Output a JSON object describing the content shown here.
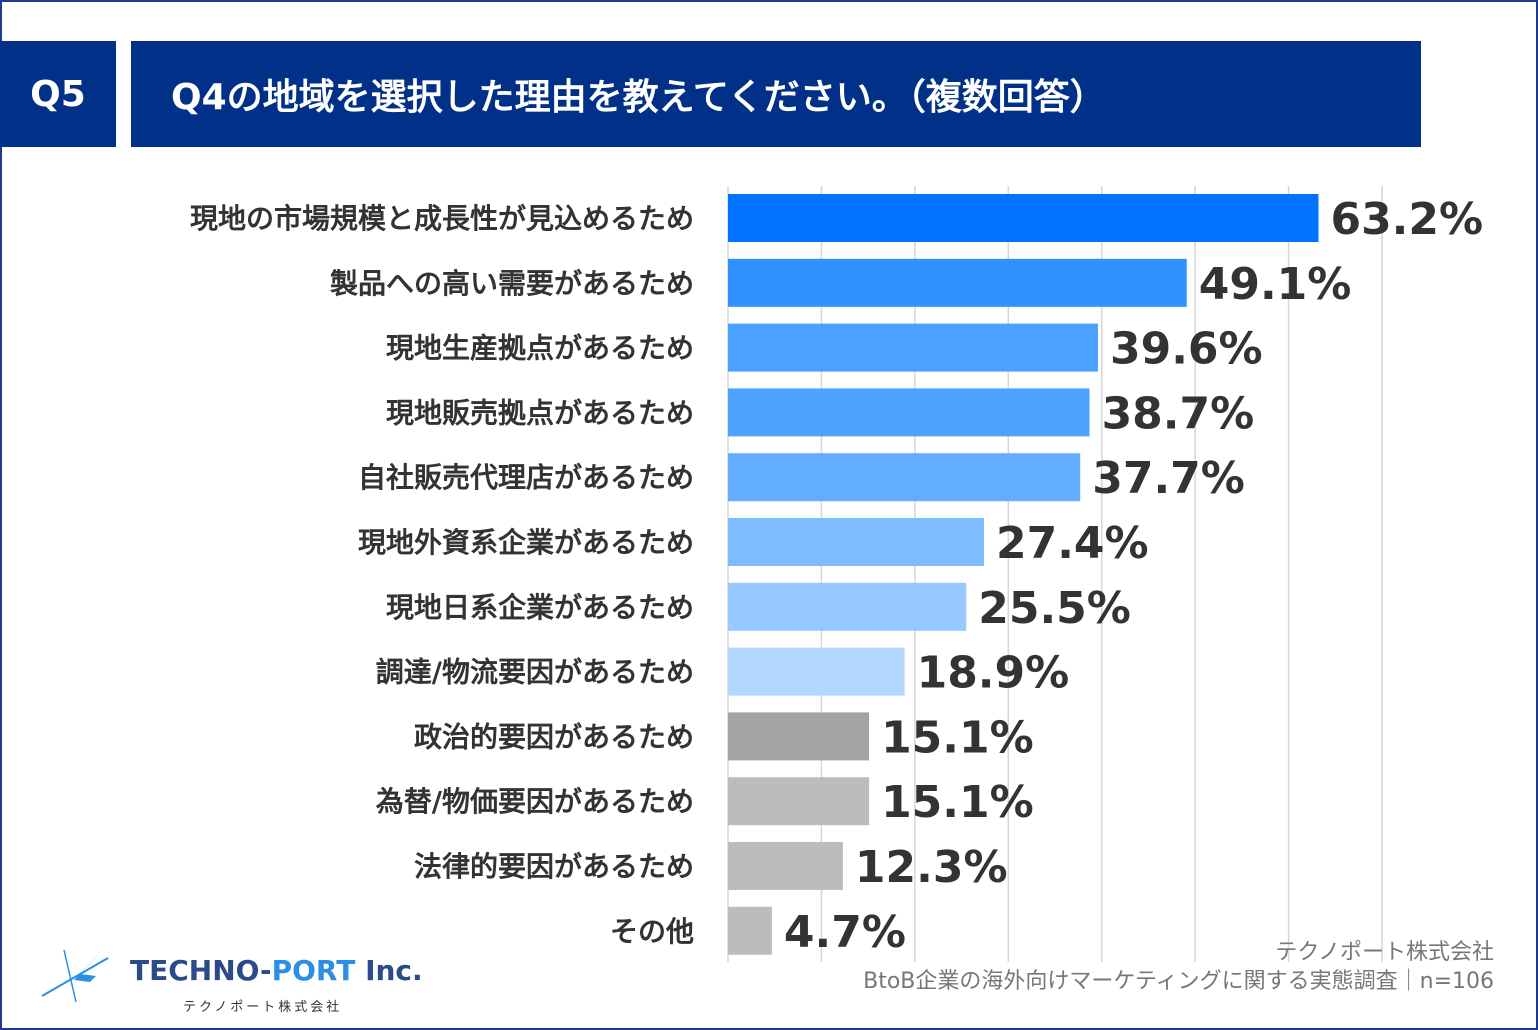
{
  "header": {
    "badge": "Q5",
    "question": "Q4の地域を選択した理由を教えてください。（複数回答）"
  },
  "chart_data": {
    "type": "bar",
    "orientation": "horizontal",
    "categories": [
      "現地の市場規模と成長性が見込めるため",
      "製品への高い需要があるため",
      "現地生産拠点があるため",
      "現地販売拠点があるため",
      "自社販売代理店があるため",
      "現地外資系企業があるため",
      "現地日系企業があるため",
      "調達/物流要因があるため",
      "政治的要因があるため",
      "為替/物価要因があるため",
      "法律的要因があるため",
      "その他"
    ],
    "values": [
      63.2,
      49.1,
      39.6,
      38.7,
      37.7,
      27.4,
      25.5,
      18.9,
      15.1,
      15.1,
      12.3,
      4.7
    ],
    "value_labels": [
      "63.2%",
      "49.1%",
      "39.6%",
      "38.7%",
      "37.7%",
      "27.4%",
      "25.5%",
      "18.9%",
      "15.1%",
      "15.1%",
      "12.3%",
      "4.7%"
    ],
    "colors": [
      "#0073ff",
      "#3191ff",
      "#4aa1ff",
      "#4ea3ff",
      "#62adff",
      "#7ebcff",
      "#97c8ff",
      "#b3d8ff",
      "#a4a4a4",
      "#bcbcbc",
      "#bcbcbc",
      "#bcbcbc"
    ],
    "xlim": [
      0,
      70
    ],
    "grid": true,
    "title": "Q4の地域を選択した理由を教えてください。（複数回答）",
    "xlabel": "",
    "ylabel": ""
  },
  "footer": {
    "company": "テクノポート株式会社",
    "survey": "BtoB企業の海外向けマーケティングに関する実態調査｜n=106"
  },
  "logo": {
    "name_main": "TECHNO-",
    "name_accent": "PORT",
    "name_suffix": " Inc.",
    "subtitle": "テクノポート株式会社",
    "accent_color": "#2b8fe6",
    "icon": "lightning-icon"
  }
}
